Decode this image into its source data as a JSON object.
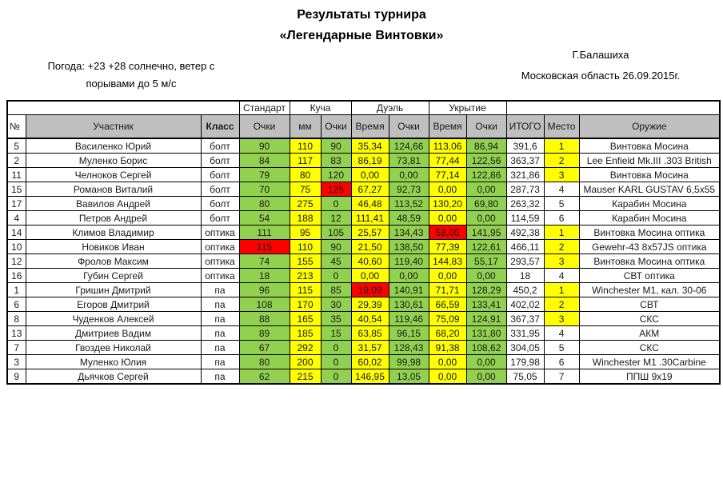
{
  "header": {
    "title_line1": "Результаты турнира",
    "title_line2": "«Легендарные Винтовки»",
    "weather_line1": "Погода: +23 +28 солнечно, ветер с",
    "weather_line2": "порывами до 5 м/с",
    "location_line1": "Г.Балашиха",
    "location_line2": "Московская область 26.09.2015г."
  },
  "table": {
    "band": {
      "standard": "Стандарт",
      "kucha": "Куча",
      "duel": "Дуэль",
      "cover": "Укрытие"
    },
    "columns": [
      "№",
      "Участник",
      "Класс",
      "Очки",
      "мм",
      "Очки",
      "Время",
      "Очки",
      "Время",
      "Очки",
      "ИТОГО",
      "Место",
      "Оружие"
    ],
    "colors": {
      "green": "#92d050",
      "yellow": "#ffff00",
      "red": "#ff0000",
      "header_grey": "#bfbfbf"
    },
    "rows": [
      {
        "num": "5",
        "name": "Василенко Юрий",
        "cls": "болт",
        "vals": [
          "90",
          "110",
          "90",
          "35,34",
          "124,66",
          "113,06",
          "86,94"
        ],
        "red": [],
        "total": "391,6",
        "place": "1",
        "top3": true,
        "weapon": "Винтовка Мосина"
      },
      {
        "num": "2",
        "name": "Муленко Борис",
        "cls": "болт",
        "vals": [
          "84",
          "117",
          "83",
          "86,19",
          "73,81",
          "77,44",
          "122,56"
        ],
        "red": [],
        "total": "363,37",
        "place": "2",
        "top3": true,
        "weapon": "Lee Enfield Mk.III .303 British"
      },
      {
        "num": "11",
        "name": "Челноков Сергей",
        "cls": "болт",
        "vals": [
          "79",
          "80",
          "120",
          "0,00",
          "0,00",
          "77,14",
          "122,86"
        ],
        "red": [],
        "total": "321,86",
        "place": "3",
        "top3": true,
        "weapon": "Винтовка Мосина"
      },
      {
        "num": "15",
        "name": "Романов Виталий",
        "cls": "болт",
        "vals": [
          "70",
          "75",
          "125",
          "67,27",
          "92,73",
          "0,00",
          "0,00"
        ],
        "red": [
          2
        ],
        "total": "287,73",
        "place": "4",
        "top3": false,
        "weapon": "Mauser KARL GUSTAV  6,5x55"
      },
      {
        "num": "17",
        "name": "Вавилов Андрей",
        "cls": "болт",
        "vals": [
          "80",
          "275",
          "0",
          "46,48",
          "113,52",
          "130,20",
          "69,80"
        ],
        "red": [],
        "total": "263,32",
        "place": "5",
        "top3": false,
        "weapon": "Карабин Мосина"
      },
      {
        "num": "4",
        "name": "Петров Андрей",
        "cls": "болт",
        "vals": [
          "54",
          "188",
          "12",
          "111,41",
          "48,59",
          "0,00",
          "0,00"
        ],
        "red": [],
        "total": "114,59",
        "place": "6",
        "top3": false,
        "weapon": "Карабин Мосина"
      },
      {
        "num": "14",
        "name": "Климов Владимир",
        "cls": "оптика",
        "vals": [
          "111",
          "95",
          "105",
          "25,57",
          "134,43",
          "58,05",
          "141,95"
        ],
        "red": [
          5
        ],
        "total": "492,38",
        "place": "1",
        "top3": true,
        "weapon": "Винтовка Мосина оптика"
      },
      {
        "num": "10",
        "name": "Новиков Иван",
        "cls": "оптика",
        "vals": [
          "115",
          "110",
          "90",
          "21,50",
          "138,50",
          "77,39",
          "122,61"
        ],
        "red": [
          0
        ],
        "total": "466,11",
        "place": "2",
        "top3": true,
        "weapon": "Gewehr-43 8x57JS оптика"
      },
      {
        "num": "12",
        "name": "Фролов Максим",
        "cls": "оптика",
        "vals": [
          "74",
          "155",
          "45",
          "40,60",
          "119,40",
          "144,83",
          "55,17"
        ],
        "red": [],
        "total": "293,57",
        "place": "3",
        "top3": true,
        "weapon": "Винтовка Мосина оптика"
      },
      {
        "num": "16",
        "name": "Губин Сергей",
        "cls": "оптика",
        "vals": [
          "18",
          "213",
          "0",
          "0,00",
          "0,00",
          "0,00",
          "0,00"
        ],
        "red": [],
        "total": "18",
        "place": "4",
        "top3": false,
        "weapon": "СВТ оптика"
      },
      {
        "num": "1",
        "name": "Гришин Дмитрий",
        "cls": "па",
        "vals": [
          "96",
          "115",
          "85",
          "19,09",
          "140,91",
          "71,71",
          "128,29"
        ],
        "red": [
          3
        ],
        "total": "450,2",
        "place": "1",
        "top3": true,
        "weapon": "Winchester M1, кал. 30-06"
      },
      {
        "num": "6",
        "name": "Егоров Дмитрий",
        "cls": "па",
        "vals": [
          "108",
          "170",
          "30",
          "29,39",
          "130,61",
          "66,59",
          "133,41"
        ],
        "red": [],
        "total": "402,02",
        "place": "2",
        "top3": true,
        "weapon": "СВТ"
      },
      {
        "num": "8",
        "name": "Чуденков Алексей",
        "cls": "па",
        "vals": [
          "88",
          "165",
          "35",
          "40,54",
          "119,46",
          "75,09",
          "124,91"
        ],
        "red": [],
        "total": "367,37",
        "place": "3",
        "top3": true,
        "weapon": "СКС"
      },
      {
        "num": "13",
        "name": "Дмитриев Вадим",
        "cls": "па",
        "vals": [
          "89",
          "185",
          "15",
          "63,85",
          "96,15",
          "68,20",
          "131,80"
        ],
        "red": [],
        "total": "331,95",
        "place": "4",
        "top3": false,
        "weapon": "АКМ"
      },
      {
        "num": "7",
        "name": "Гвоздев Николай",
        "cls": "па",
        "vals": [
          "67",
          "292",
          "0",
          "31,57",
          "128,43",
          "91,38",
          "108,62"
        ],
        "red": [],
        "total": "304,05",
        "place": "5",
        "top3": false,
        "weapon": "СКС"
      },
      {
        "num": "3",
        "name": "Муленко Юлия",
        "cls": "па",
        "vals": [
          "80",
          "200",
          "0",
          "60,02",
          "99,98",
          "0,00",
          "0,00"
        ],
        "red": [],
        "total": "179,98",
        "place": "6",
        "top3": false,
        "weapon": "Winchester M1 .30Carbine"
      },
      {
        "num": "9",
        "name": "Дьячков Сергей",
        "cls": "па",
        "vals": [
          "62",
          "215",
          "0",
          "146,95",
          "13,05",
          "0,00",
          "0,00"
        ],
        "red": [],
        "total": "75,05",
        "place": "7",
        "top3": false,
        "weapon": "ППШ 9x19"
      }
    ]
  }
}
